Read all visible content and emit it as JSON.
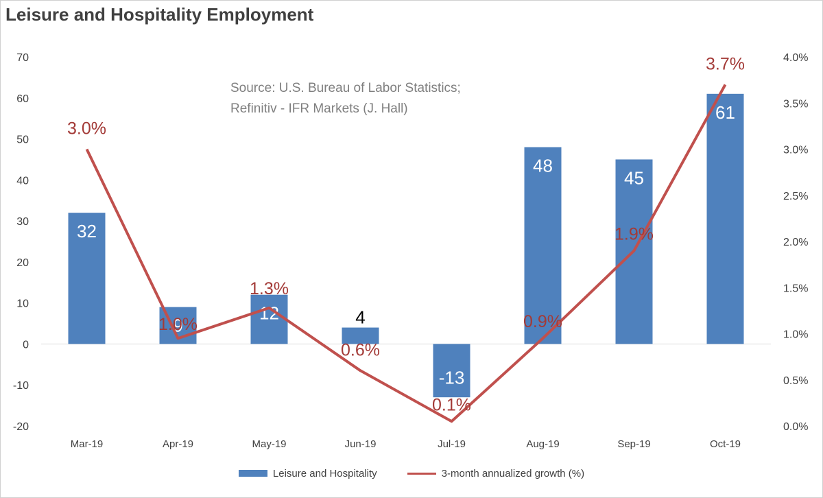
{
  "chart_data": {
    "type": "bar",
    "title": "Leisure and Hospitality Employment",
    "annotations": [
      "Source: U.S. Bureau of Labor Statistics;",
      "Refinitiv - IFR Markets (J. Hall)"
    ],
    "categories": [
      "Mar-19",
      "Apr-19",
      "May-19",
      "Jun-19",
      "Jul-19",
      "Aug-19",
      "Sep-19",
      "Oct-19"
    ],
    "series": [
      {
        "name": "Leisure and Hospitality",
        "type": "bar",
        "axis": "left",
        "color": "#4f81bd",
        "values": [
          32,
          9,
          12,
          4,
          -13,
          48,
          45,
          61
        ],
        "labels": [
          "32",
          "9",
          "12",
          "4",
          "-13",
          "48",
          "45",
          "61"
        ]
      },
      {
        "name": "3-month annualized growth (%)",
        "type": "line",
        "axis": "right",
        "color": "#c0504d",
        "values": [
          3.0,
          0.95,
          1.28,
          0.6,
          0.05,
          0.95,
          1.9,
          3.7
        ],
        "labels": [
          "3.0%",
          "1.0%",
          "1.3%",
          "0.6%",
          "0.1%",
          "0.9%",
          "1.9%",
          "3.7%"
        ]
      }
    ],
    "y_left": {
      "min": -20,
      "max": 70,
      "step": 10,
      "ticks": [
        "70",
        "60",
        "50",
        "40",
        "30",
        "20",
        "10",
        "0",
        "-10",
        "-20"
      ]
    },
    "y_right": {
      "min": 0,
      "max": 4,
      "step": 0.5,
      "ticks": [
        "4.0%",
        "3.5%",
        "3.0%",
        "2.5%",
        "2.0%",
        "1.5%",
        "1.0%",
        "0.5%",
        "0.0%"
      ]
    },
    "legend_position": "bottom",
    "grid": false
  }
}
